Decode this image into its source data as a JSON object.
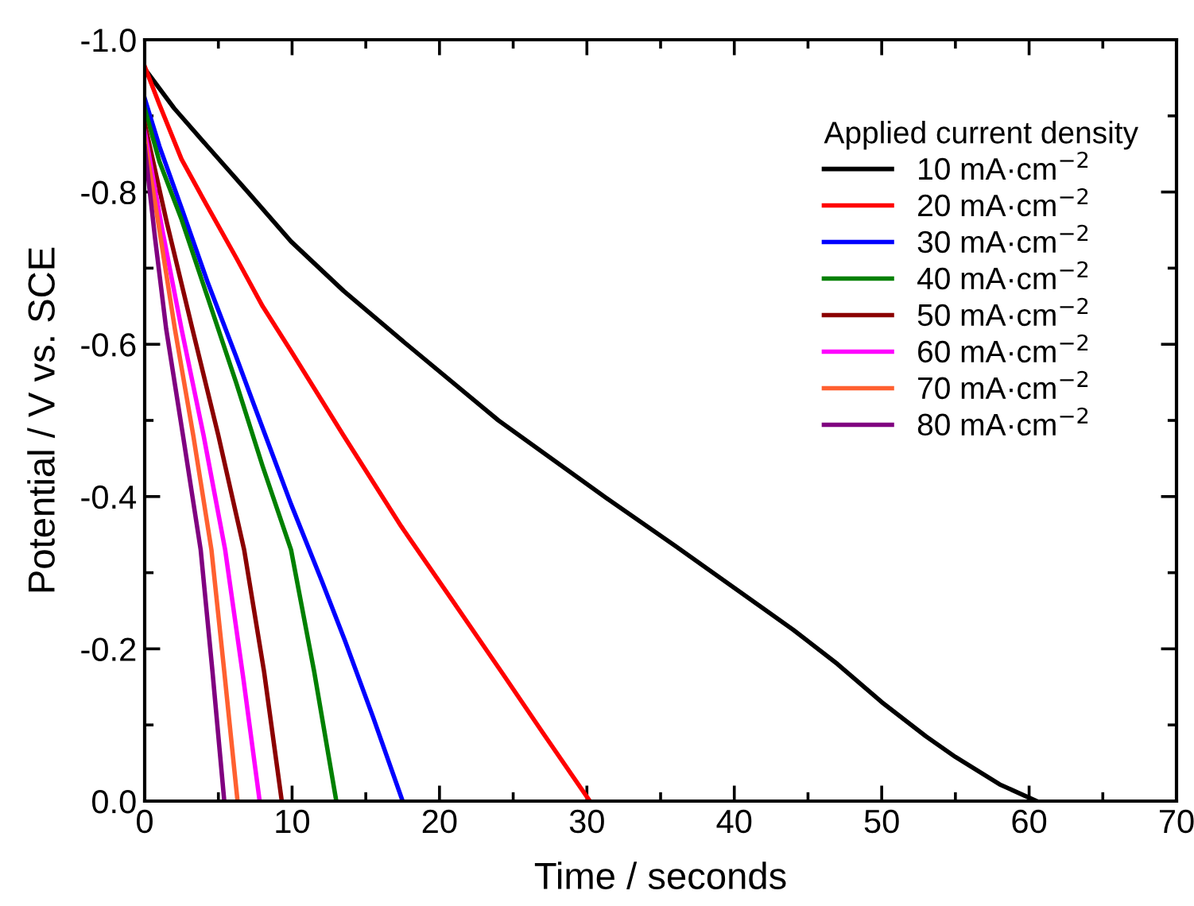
{
  "chart_data": {
    "type": "line",
    "xlabel": "Time / seconds",
    "ylabel": "Potential / V vs. SCE",
    "legend_title": "Applied current density",
    "legend": "top right",
    "line_style": "solid",
    "grid": false,
    "xlim": [
      0,
      70
    ],
    "xticks": [
      0,
      {
        "value": 5,
        "label": null
      },
      10,
      {
        "value": 15,
        "label": null
      },
      20,
      {
        "value": 25,
        "label": null
      },
      30,
      {
        "value": 35,
        "label": null
      },
      40,
      {
        "value": 45,
        "label": null
      },
      50,
      {
        "value": 55,
        "label": null
      },
      60,
      {
        "value": 65,
        "label": null
      },
      70
    ],
    "ylim": [
      0,
      -1.0
    ],
    "yticks": [
      {
        "value": -1.0,
        "label": "-1.0"
      },
      {
        "value": -0.9,
        "label": null
      },
      {
        "value": -0.8,
        "label": "-0.8"
      },
      {
        "value": -0.7,
        "label": null
      },
      {
        "value": -0.6,
        "label": "-0.6"
      },
      {
        "value": -0.5,
        "label": null
      },
      {
        "value": -0.4,
        "label": "-0.4"
      },
      {
        "value": -0.3,
        "label": null
      },
      {
        "value": -0.2,
        "label": "-0.2"
      },
      {
        "value": -0.1,
        "label": null
      },
      {
        "value": 0,
        "label": "0.0"
      }
    ],
    "series": [
      {
        "name": "10 mA·cm$^{−2}$",
        "color": "#000000",
        "x": [
          0,
          2,
          4.35,
          7,
          9.93,
          13.5,
          17.4,
          24,
          31.1,
          36,
          40,
          44,
          47,
          50,
          53,
          55,
          58,
          60.5
        ],
        "values": [
          -0.962,
          -0.91,
          -0.858,
          -0.8,
          -0.735,
          -0.67,
          -0.606,
          -0.5,
          -0.401,
          -0.335,
          -0.28,
          -0.225,
          -0.18,
          -0.13,
          -0.085,
          -0.058,
          -0.022,
          0
        ]
      },
      {
        "name": "20 mA·cm$^{−2}$",
        "color": "#ff0000",
        "x": [
          0,
          1,
          2.5,
          4,
          6.2,
          8,
          9.93,
          13.5,
          17.4,
          21,
          24.3,
          27,
          30.2
        ],
        "values": [
          -0.965,
          -0.915,
          -0.843,
          -0.79,
          -0.714,
          -0.65,
          -0.591,
          -0.48,
          -0.361,
          -0.26,
          -0.167,
          -0.09,
          0
        ]
      },
      {
        "name": "30 mA·cm$^{−2}$",
        "color": "#0000ff",
        "x": [
          0,
          1,
          2.5,
          4.3,
          6.2,
          8,
          9.93,
          12,
          13.6,
          15.5,
          17.5
        ],
        "values": [
          -0.923,
          -0.86,
          -0.779,
          -0.68,
          -0.584,
          -0.49,
          -0.39,
          -0.29,
          -0.21,
          -0.11,
          0
        ]
      },
      {
        "name": "40 mA·cm$^{−2}$",
        "color": "#008000",
        "x": [
          0,
          1,
          2.5,
          4.3,
          6.2,
          8,
          9.93,
          11.5,
          13.0
        ],
        "values": [
          -0.91,
          -0.84,
          -0.764,
          -0.66,
          -0.55,
          -0.44,
          -0.33,
          -0.17,
          0
        ]
      },
      {
        "name": "50 mA·cm$^{−2}$",
        "color": "#8b0000",
        "x": [
          0,
          1.5,
          3.24,
          5,
          6.75,
          8.1,
          9.3
        ],
        "values": [
          -0.89,
          -0.76,
          -0.62,
          -0.48,
          -0.33,
          -0.17,
          0
        ]
      },
      {
        "name": "60 mA·cm$^{−2}$",
        "color": "#ff00ff",
        "x": [
          0,
          1.2,
          2.5,
          4,
          5.46,
          6.7,
          7.8
        ],
        "values": [
          -0.88,
          -0.75,
          -0.62,
          -0.48,
          -0.33,
          -0.16,
          0
        ]
      },
      {
        "name": "70 mA·cm$^{−2}$",
        "color": "#ff6030",
        "x": [
          0,
          1,
          2.05,
          3.3,
          4.53,
          5.4,
          6.3
        ],
        "values": [
          -0.87,
          -0.75,
          -0.62,
          -0.48,
          -0.33,
          -0.17,
          0
        ]
      },
      {
        "name": "80 mA·cm$^{−2}$",
        "color": "#800080",
        "x": [
          0,
          0.7,
          1.46,
          2.6,
          3.8,
          4.6,
          5.4
        ],
        "values": [
          -0.86,
          -0.74,
          -0.62,
          -0.48,
          -0.33,
          -0.17,
          0
        ]
      }
    ]
  }
}
